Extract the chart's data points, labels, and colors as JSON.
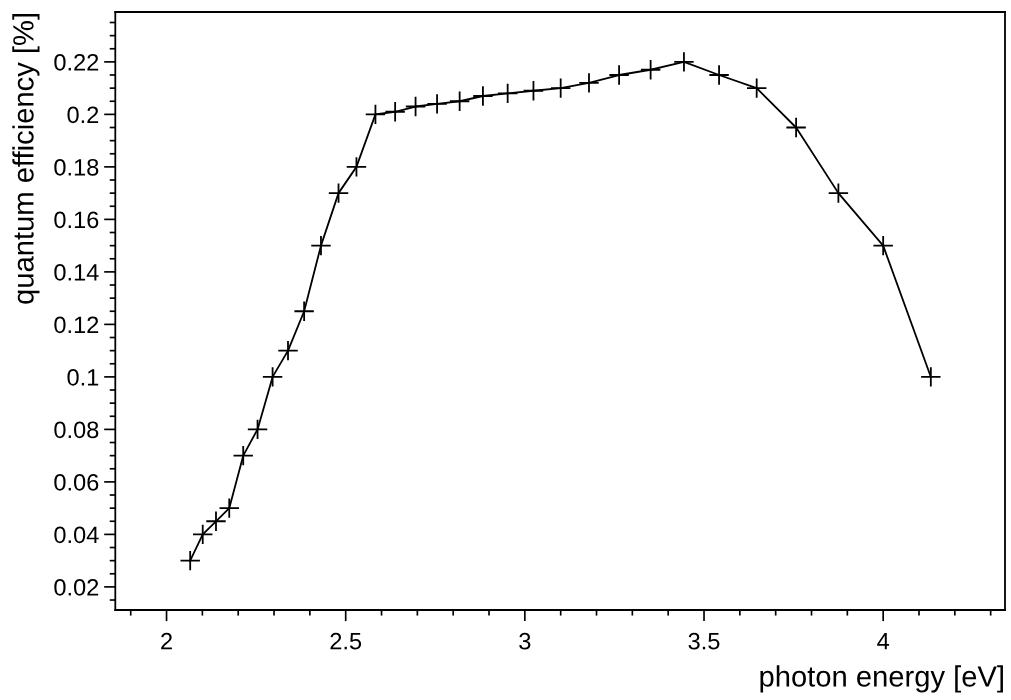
{
  "chart_data": {
    "type": "line",
    "xlabel": "photon energy [eV]",
    "ylabel": "quantum efficiency [%]",
    "x": [
      2.066,
      2.101,
      2.138,
      2.175,
      2.214,
      2.254,
      2.296,
      2.339,
      2.384,
      2.431,
      2.48,
      2.53,
      2.583,
      2.638,
      2.695,
      2.755,
      2.818,
      2.883,
      2.952,
      3.024,
      3.1,
      3.179,
      3.263,
      3.351,
      3.444,
      3.542,
      3.647,
      3.757,
      3.875,
      4.0,
      4.133
    ],
    "series": [
      {
        "color": "#000000",
        "values": [
          0.03,
          0.04,
          0.045,
          0.05,
          0.07,
          0.08,
          0.1,
          0.11,
          0.125,
          0.15,
          0.17,
          0.18,
          0.2,
          0.201,
          0.203,
          0.204,
          0.205,
          0.207,
          0.208,
          0.209,
          0.21,
          0.212,
          0.215,
          0.217,
          0.22,
          0.215,
          0.21,
          0.195,
          0.17,
          0.15,
          0.1
        ]
      }
    ],
    "marker": "cross",
    "line_style": "solid",
    "grid": false,
    "legend": false,
    "xlim": [
      1.857,
      4.34
    ],
    "ylim": [
      0.0112,
      0.239
    ],
    "xticks": [
      2,
      2.5,
      3,
      3.5,
      4
    ],
    "yticks": [
      0.02,
      0.04,
      0.06,
      0.08,
      0.1,
      0.12,
      0.14,
      0.16,
      0.18,
      0.2,
      0.22
    ]
  }
}
